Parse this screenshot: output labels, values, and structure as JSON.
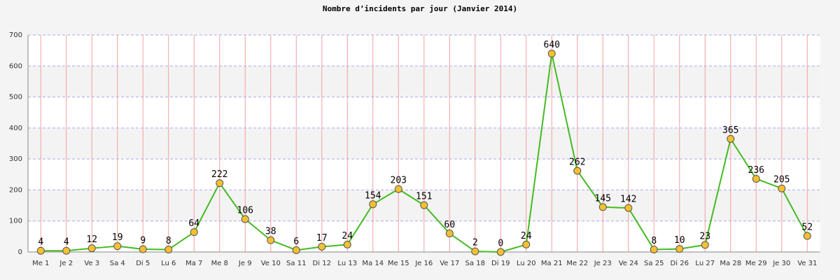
{
  "chart_data": {
    "type": "line",
    "title": "Nombre d’incidents par jour (Janvier 2014)",
    "categories": [
      "Me 1",
      "Je 2",
      "Ve 3",
      "Sa 4",
      "Di 5",
      "Lu 6",
      "Ma 7",
      "Me 8",
      "Je 9",
      "Ve 10",
      "Sa 11",
      "Di 12",
      "Lu 13",
      "Ma 14",
      "Me 15",
      "Je 16",
      "Ve 17",
      "Sa 18",
      "Di 19",
      "Lu 20",
      "Ma 21",
      "Me 22",
      "Je 23",
      "Ve 24",
      "Sa 25",
      "Di 26",
      "Lu 27",
      "Ma 28",
      "Me 29",
      "Je 30",
      "Ve 31"
    ],
    "values": [
      4,
      4,
      12,
      19,
      9,
      8,
      64,
      222,
      106,
      38,
      6,
      17,
      24,
      154,
      203,
      151,
      60,
      2,
      0,
      24,
      640,
      262,
      145,
      142,
      8,
      10,
      23,
      365,
      236,
      205,
      52
    ],
    "color": "#44bb22",
    "marker_color": "#f5c030",
    "ylim": [
      0,
      700
    ],
    "yticks": [
      0,
      100,
      200,
      300,
      400,
      500,
      600,
      700
    ],
    "grid": true
  }
}
